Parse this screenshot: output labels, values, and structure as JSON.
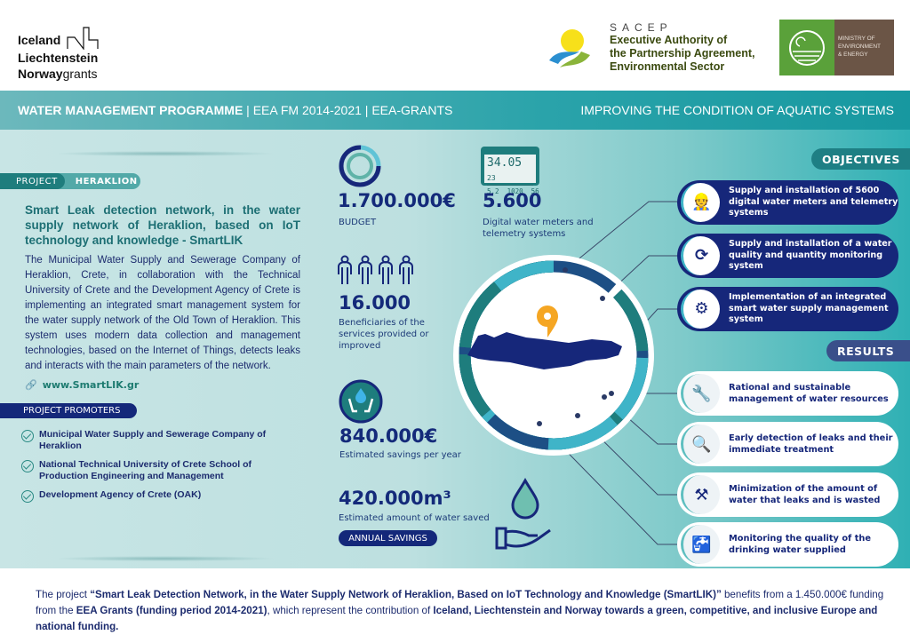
{
  "header": {
    "eea_logo": {
      "line1": "Iceland",
      "line2": "Liechtenstein",
      "line3a": "Norway",
      "line3b": "grants"
    },
    "sacep": {
      "acronym": "SACEP",
      "line1": "Executive Authority of",
      "line2": "the Partnership Agreement,",
      "line3": "Environmental Sector"
    },
    "ministry": {
      "line1": "MINISTRY OF",
      "line2": "ENVIRONMENT",
      "line3": "& ENERGY"
    }
  },
  "banner": {
    "programme": "WATER MANAGEMENT PROGRAMME",
    "rest": " | EEA FM 2014-2021 | EEA-GRANTS",
    "right": "IMPROVING THE CONDITION OF AQUATIC SYSTEMS"
  },
  "project": {
    "label": "PROJECT",
    "name": "HERAKLION",
    "title": "Smart Leak detection network, in the water supply network of Heraklion, based on IoT technology and knowledge - SmartLIK",
    "description": "The Municipal Water Supply and Sewerage Company of Heraklion, Crete, in collaboration with the Technical University of Crete and the Development Agency of Crete is implementing an integrated smart management system for the water supply network of the Old Town of Heraklion. This system uses modern data collection and management technologies, based on the Internet of Things, detects leaks and interacts with the main parameters of the network.",
    "link": "www.SmartLIK.gr"
  },
  "promoters": {
    "label": "PROJECT PROMOTERS",
    "items": [
      "Municipal Water Supply and Sewerage Company of Heraklion",
      "National Technical University of Crete School of Production Engineering and Management",
      "Development Agency of Crete (OAK)"
    ]
  },
  "stats": {
    "budget": {
      "value": "1.700.000€",
      "label": "BUDGET"
    },
    "meters": {
      "value": "5.600",
      "label": "Digital water meters and telemetry systems",
      "display": {
        "top": "34.05",
        "top_small": "23",
        "bottom": "5.2  1020  56"
      }
    },
    "beneficiaries": {
      "value": "16.000",
      "label": "Beneficiaries of the services provided or improved"
    },
    "savings": {
      "value": "840.000€",
      "label": "Estimated savings per year"
    },
    "water": {
      "value": "420.000m³",
      "label": "Estimated amount of water saved",
      "badge": "ANNUAL SAVINGS"
    }
  },
  "objectives": {
    "label": "OBJECTIVES",
    "items": [
      {
        "text": "Supply and installation of 5600 digital water meters and telemetry systems",
        "icon": "worker-meter-icon"
      },
      {
        "text": "Supply and installation of a water quality and quantity monitoring system",
        "icon": "monitoring-cycle-icon"
      },
      {
        "text": "Implementation of an integrated smart water supply management system",
        "icon": "api-gear-icon"
      }
    ]
  },
  "results": {
    "label": "RESULTS",
    "items": [
      {
        "text": "Rational and sustainable management of water resources",
        "icon": "valve-icon"
      },
      {
        "text": "Early detection of leaks and their immediate treatment",
        "icon": "monitor-search-icon"
      },
      {
        "text": "Minimization of the amount of water that leaks and is wasted",
        "icon": "pipe-worker-icon"
      },
      {
        "text": "Monitoring the quality of the drinking water supplied",
        "icon": "faucet-glass-icon"
      }
    ]
  },
  "footer": {
    "p1": "The project ",
    "b1": "“Smart Leak Detection Network, in the Water Supply Network of Heraklion, Based on IoT Technology and Knowledge (SmartLIK)”",
    "p2": " benefits from a 1.450.000€ funding from the ",
    "b2": "EEA Grants (funding period 2014-2021)",
    "p3": ", which represent the contribution of ",
    "b3": "Iceland, Liechtenstein and Norway towards a green, competitive, and inclusive Europe and national funding."
  },
  "colors": {
    "navy": "#16277a",
    "teal": "#1e7d7d",
    "accent_orange": "#f5a623"
  }
}
